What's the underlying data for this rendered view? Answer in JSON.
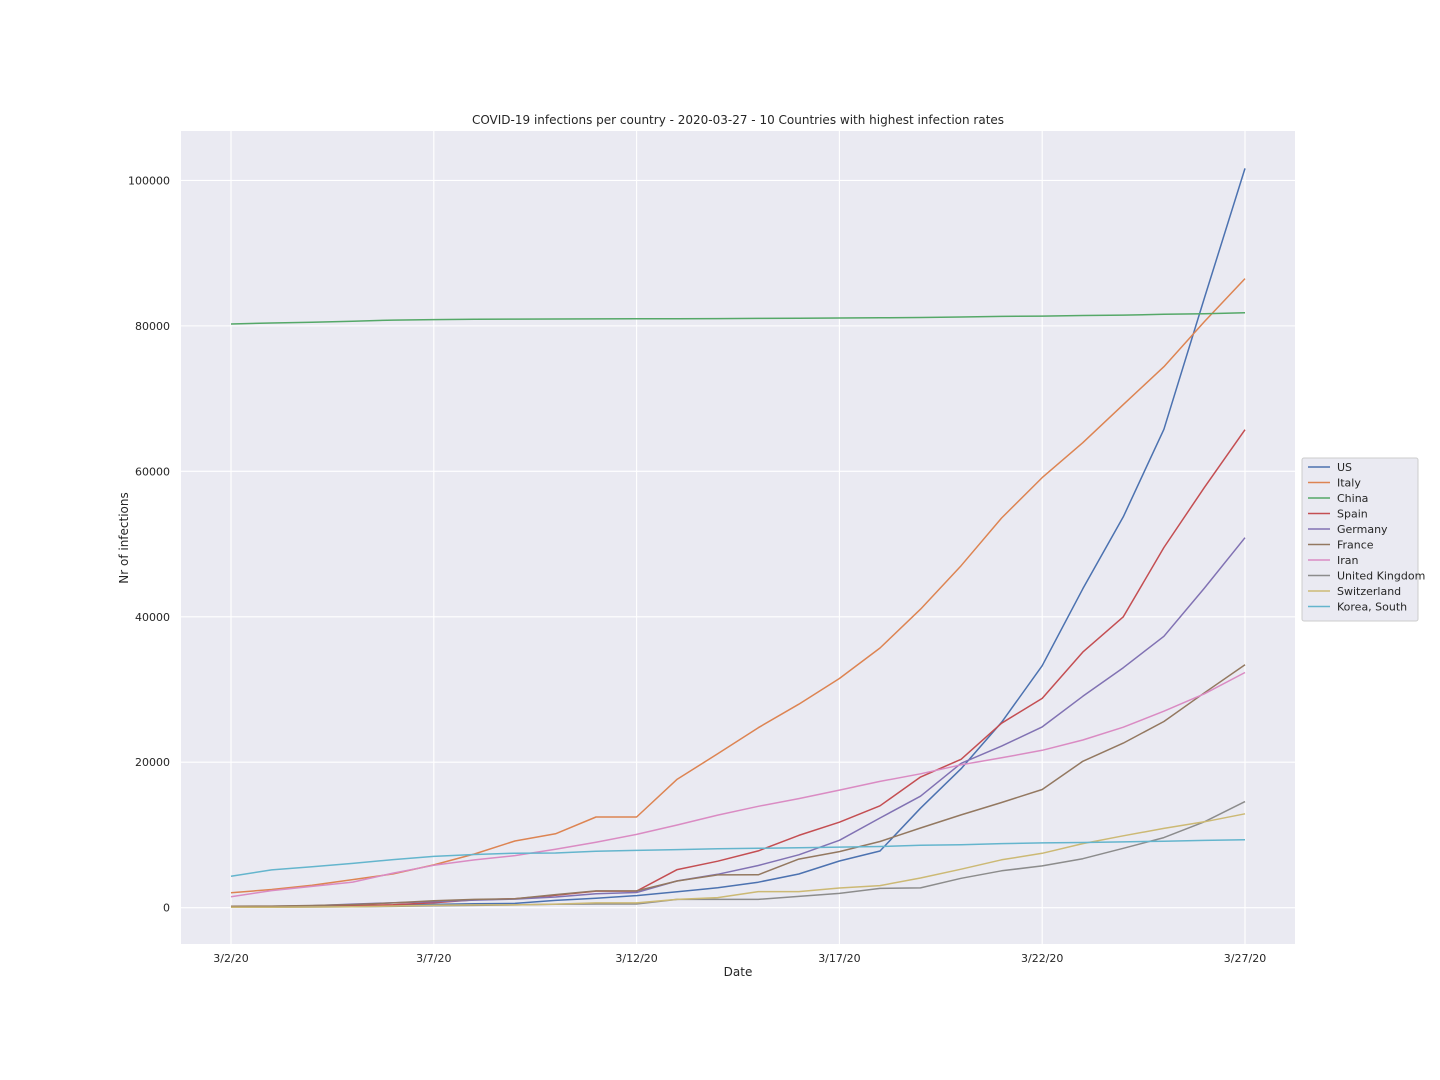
{
  "chart_data": {
    "type": "line",
    "title": "COVID-19 infections per country - 2020-03-27 - 10 Countries with highest infection rates",
    "xlabel": "Date",
    "ylabel": "Nr of infections",
    "x": [
      "3/2/20",
      "3/3/20",
      "3/4/20",
      "3/5/20",
      "3/6/20",
      "3/7/20",
      "3/8/20",
      "3/9/20",
      "3/10/20",
      "3/11/20",
      "3/12/20",
      "3/13/20",
      "3/14/20",
      "3/15/20",
      "3/16/20",
      "3/17/20",
      "3/18/20",
      "3/19/20",
      "3/20/20",
      "3/21/20",
      "3/22/20",
      "3/23/20",
      "3/24/20",
      "3/25/20",
      "3/26/20",
      "3/27/20"
    ],
    "x_ticks": [
      "3/2/20",
      "3/7/20",
      "3/12/20",
      "3/17/20",
      "3/22/20",
      "3/27/20"
    ],
    "y_ticks": [
      0,
      20000,
      40000,
      60000,
      80000,
      100000
    ],
    "ylim": [
      -5000,
      106800
    ],
    "grid": true,
    "legend_position": "center-right, outside plot",
    "background_color": "#eaeaf2",
    "series": [
      {
        "name": "US",
        "color": "#4c72b0",
        "values": [
          100,
          120,
          160,
          220,
          320,
          450,
          540,
          590,
          990,
          1300,
          1660,
          2180,
          2730,
          3500,
          4630,
          6420,
          7790,
          13680,
          19100,
          25490,
          33270,
          43850,
          53740,
          65780,
          83840,
          101660
        ]
      },
      {
        "name": "Italy",
        "color": "#dd8452",
        "values": [
          2040,
          2500,
          3090,
          3860,
          4640,
          5880,
          7380,
          9170,
          10150,
          12460,
          12460,
          17660,
          21160,
          24750,
          27980,
          31510,
          35710,
          41040,
          47020,
          53580,
          59140,
          63930,
          69180,
          74390,
          80590,
          86500
        ]
      },
      {
        "name": "China",
        "color": "#55a868",
        "values": [
          80260,
          80400,
          80500,
          80650,
          80800,
          80870,
          80900,
          80930,
          80950,
          80960,
          80970,
          80980,
          81000,
          81030,
          81060,
          81090,
          81110,
          81160,
          81220,
          81300,
          81350,
          81430,
          81490,
          81590,
          81670,
          81800
        ]
      },
      {
        "name": "Spain",
        "color": "#c44e52",
        "values": [
          120,
          170,
          230,
          280,
          400,
          670,
          1070,
          1230,
          1700,
          2280,
          2280,
          5230,
          6390,
          7800,
          9940,
          11750,
          14000,
          17960,
          20400,
          25370,
          28770,
          35140,
          40000,
          49520,
          57790,
          65720
        ]
      },
      {
        "name": "Germany",
        "color": "#8172b3",
        "values": [
          160,
          200,
          260,
          480,
          670,
          800,
          1040,
          1180,
          1460,
          1900,
          2080,
          3680,
          4590,
          5800,
          7270,
          9260,
          12330,
          15320,
          19850,
          22210,
          24860,
          29060,
          32990,
          37320,
          43940,
          50870
        ]
      },
      {
        "name": "France",
        "color": "#937860",
        "values": [
          190,
          210,
          290,
          420,
          650,
          950,
          1130,
          1220,
          1800,
          2300,
          2300,
          3670,
          4500,
          4520,
          6680,
          7700,
          9100,
          10950,
          12750,
          14460,
          16240,
          20120,
          22620,
          25600,
          29550,
          33400
        ]
      },
      {
        "name": "Iran",
        "color": "#da8bc3",
        "values": [
          1500,
          2340,
          2920,
          3510,
          4750,
          5820,
          6570,
          7160,
          8040,
          9000,
          10070,
          11360,
          12730,
          13940,
          15000,
          16170,
          17360,
          18410,
          19640,
          20610,
          21640,
          23050,
          24810,
          27020,
          29410,
          32330
        ]
      },
      {
        "name": "United Kingdom",
        "color": "#8c8c8c",
        "values": [
          40,
          50,
          90,
          120,
          170,
          270,
          310,
          370,
          460,
          500,
          500,
          1140,
          1140,
          1140,
          1550,
          1960,
          2640,
          2720,
          4030,
          5060,
          5740,
          6730,
          8160,
          9630,
          11810,
          14580
        ]
      },
      {
        "name": "Switzerland",
        "color": "#ccb974",
        "values": [
          40,
          60,
          90,
          110,
          220,
          340,
          370,
          370,
          490,
          650,
          650,
          1140,
          1380,
          2200,
          2200,
          2700,
          3030,
          4080,
          5290,
          6580,
          7470,
          8800,
          9880,
          10900,
          11800,
          12900
        ]
      },
      {
        "name": "Korea, South",
        "color": "#64b5cd",
        "values": [
          4330,
          5190,
          5620,
          6090,
          6600,
          7040,
          7310,
          7480,
          7510,
          7760,
          7870,
          7980,
          8090,
          8160,
          8240,
          8320,
          8410,
          8570,
          8650,
          8800,
          8900,
          8960,
          9040,
          9140,
          9240,
          9330
        ]
      }
    ]
  }
}
